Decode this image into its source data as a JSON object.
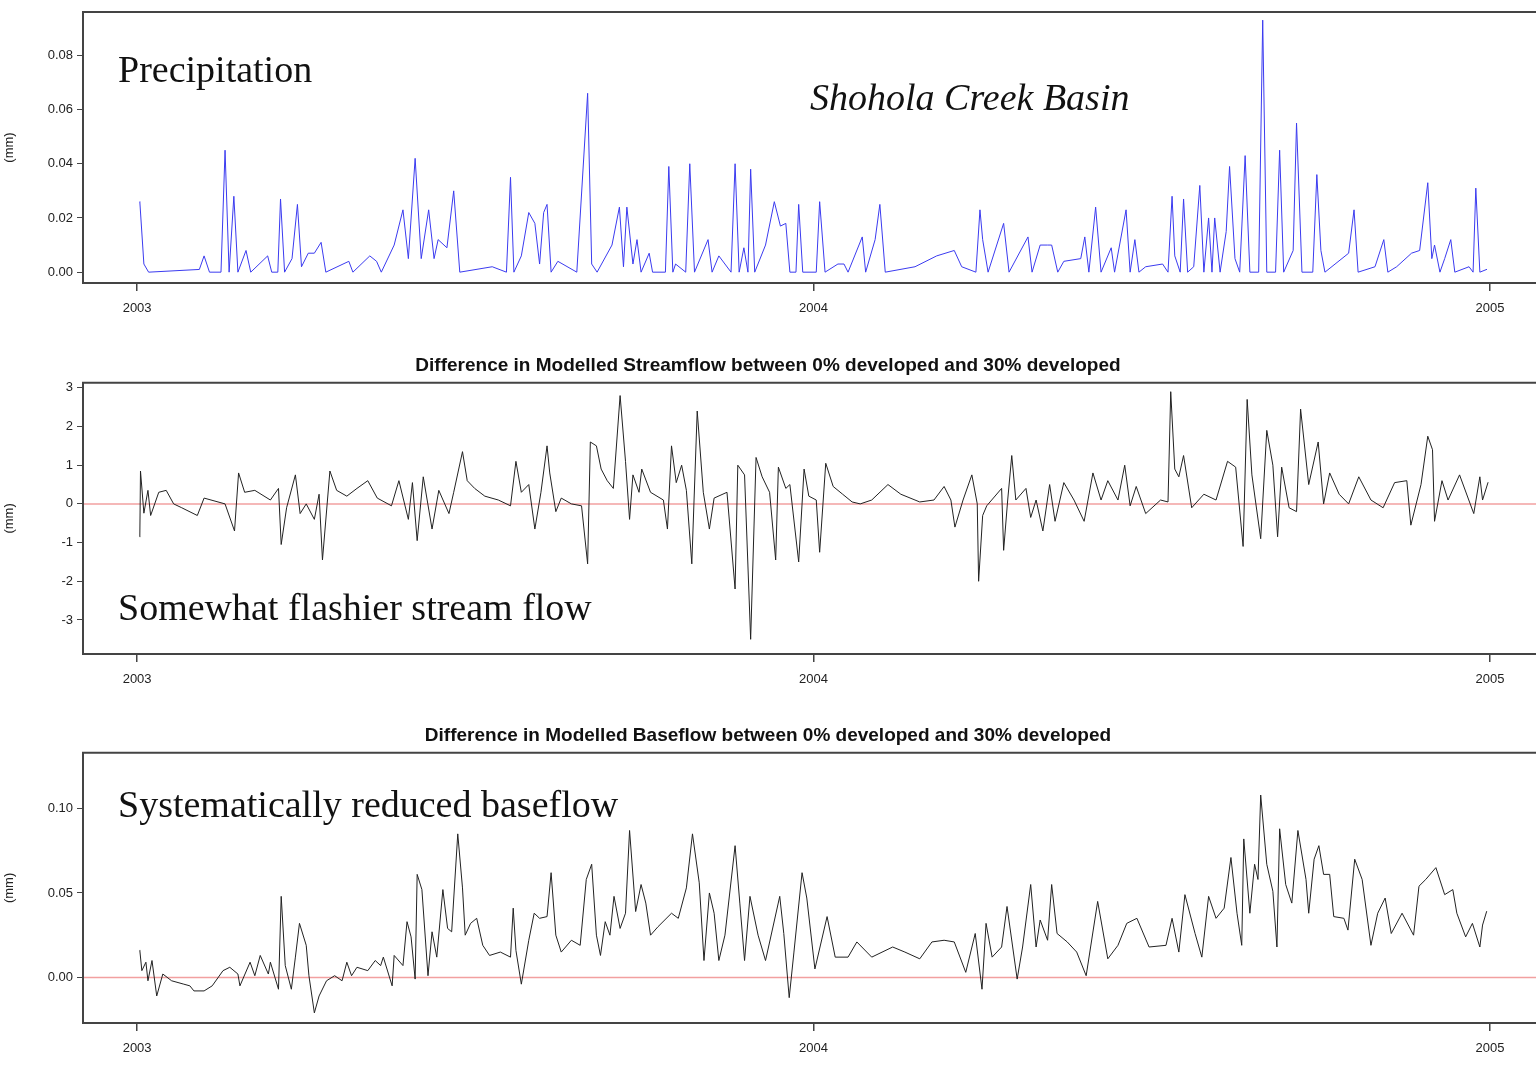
{
  "chart_data": [
    {
      "type": "line",
      "ylabel": "(mm)",
      "annotations": [
        "Precipitation",
        "Shohola Creek Basin"
      ],
      "xlim": [
        2002.92,
        2005.068
      ],
      "xticks": [
        2003,
        2004,
        2005
      ],
      "ylim": [
        -0.004,
        0.096
      ],
      "yticks": [
        {
          "value": 0,
          "label": "0.00"
        },
        {
          "value": 0.02,
          "label": "0.02"
        },
        {
          "value": 0.04,
          "label": "0.04"
        },
        {
          "value": 0.06,
          "label": "0.06"
        },
        {
          "value": 0.08,
          "label": "0.08"
        }
      ],
      "grid": false,
      "legend": false,
      "marker": "none",
      "line_style": "solid",
      "x": [
        2003.004,
        2003.01,
        2003.017,
        2003.092,
        2003.099,
        2003.107,
        2003.124,
        2003.13,
        2003.136,
        2003.143,
        2003.149,
        2003.161,
        2003.168,
        2003.193,
        2003.199,
        2003.208,
        2003.212,
        2003.218,
        2003.229,
        2003.237,
        2003.243,
        2003.253,
        2003.262,
        2003.272,
        2003.279,
        2003.313,
        2003.319,
        2003.344,
        2003.354,
        2003.361,
        2003.38,
        2003.393,
        2003.401,
        2003.411,
        2003.42,
        2003.431,
        2003.439,
        2003.445,
        2003.458,
        2003.468,
        2003.477,
        2003.525,
        2003.546,
        2003.552,
        2003.557,
        2003.568,
        2003.579,
        2003.588,
        2003.595,
        2003.601,
        2003.606,
        2003.612,
        2003.622,
        2003.65,
        2003.666,
        2003.672,
        2003.68,
        2003.702,
        2003.713,
        2003.719,
        2003.724,
        2003.733,
        2003.739,
        2003.745,
        2003.757,
        2003.762,
        2003.781,
        2003.786,
        2003.792,
        2003.796,
        2003.811,
        2003.817,
        2003.824,
        2003.844,
        2003.85,
        2003.86,
        2003.878,
        2003.884,
        2003.89,
        2003.897,
        2003.903,
        2003.907,
        2003.913,
        2003.929,
        2003.942,
        2003.951,
        2003.959,
        2003.965,
        2003.974,
        2003.978,
        2003.984,
        2004.004,
        2004.009,
        2004.017,
        2004.036,
        2004.045,
        2004.051,
        2004.072,
        2004.077,
        2004.091,
        2004.098,
        2004.106,
        2004.15,
        2004.182,
        2004.208,
        2004.219,
        2004.24,
        2004.246,
        2004.25,
        2004.258,
        2004.281,
        2004.289,
        2004.317,
        2004.323,
        2004.335,
        2004.346,
        2004.352,
        2004.361,
        2004.37,
        2004.395,
        2004.401,
        2004.407,
        2004.417,
        2004.425,
        2004.44,
        2004.445,
        2004.462,
        2004.468,
        2004.475,
        2004.481,
        2004.491,
        2004.516,
        2004.524,
        2004.53,
        2004.534,
        2004.542,
        2004.547,
        2004.553,
        2004.562,
        2004.571,
        2004.577,
        2004.584,
        2004.589,
        2004.593,
        2004.601,
        2004.61,
        2004.615,
        2004.623,
        2004.63,
        2004.638,
        2004.645,
        2004.658,
        2004.664,
        2004.67,
        2004.683,
        2004.689,
        2004.695,
        2004.709,
        2004.714,
        2004.722,
        2004.738,
        2004.744,
        2004.75,
        2004.756,
        2004.791,
        2004.799,
        2004.805,
        2004.83,
        2004.843,
        2004.849,
        2004.862,
        2004.884,
        2004.896,
        2004.908,
        2004.914,
        2004.918,
        2004.926,
        2004.933,
        2004.942,
        2004.948,
        2004.969,
        2004.975,
        2004.979,
        2004.985,
        2004.995
      ],
      "series": [
        {
          "color": "#3b3bf0",
          "values": [
            0.026,
            0.003,
            0,
            0.001,
            0.006,
            0,
            0,
            0.045,
            0,
            0.028,
            0,
            0.008,
            0,
            0.006,
            0,
            0,
            0.027,
            0,
            0.005,
            0.025,
            0.002,
            0.007,
            0.007,
            0.011,
            0,
            0.004,
            0,
            0.006,
            0.004,
            0,
            0.01,
            0.023,
            0.005,
            0.042,
            0.005,
            0.023,
            0.005,
            0.012,
            0.009,
            0.03,
            0,
            0.002,
            0,
            0.035,
            0,
            0.006,
            0.022,
            0.018,
            0.003,
            0.022,
            0.025,
            0,
            0.004,
            0,
            0.066,
            0.003,
            0,
            0.01,
            0.024,
            0.002,
            0.024,
            0.003,
            0.012,
            0,
            0.007,
            0,
            0,
            0.039,
            0,
            0.003,
            0,
            0.04,
            0,
            0.012,
            0,
            0.006,
            0,
            0.04,
            0,
            0.009,
            0,
            0.038,
            0,
            0.01,
            0.026,
            0.017,
            0.018,
            0,
            0,
            0.025,
            0,
            0,
            0.026,
            0,
            0.003,
            0.003,
            0,
            0.013,
            0,
            0.012,
            0.025,
            0,
            0.002,
            0.006,
            0.008,
            0.002,
            0,
            0.023,
            0.012,
            0,
            0.018,
            0,
            0.013,
            0,
            0.01,
            0.01,
            0.01,
            0,
            0.004,
            0.005,
            0.013,
            0,
            0.024,
            0,
            0.009,
            0,
            0.023,
            0,
            0.012,
            0,
            0.002,
            0.003,
            0,
            0.028,
            0.006,
            0,
            0.027,
            0,
            0.002,
            0.032,
            0,
            0.02,
            0,
            0.02,
            0,
            0.015,
            0.039,
            0.005,
            0,
            0.043,
            0,
            0,
            0.093,
            0,
            0,
            0.045,
            0,
            0.008,
            0.055,
            0,
            0,
            0.036,
            0.008,
            0,
            0.007,
            0.023,
            0,
            0.002,
            0.012,
            0,
            0.002,
            0.007,
            0.008,
            0.033,
            0.005,
            0.01,
            0,
            0.005,
            0.012,
            0,
            0.002,
            0,
            0.031,
            0,
            0.001
          ]
        }
      ]
    },
    {
      "type": "line",
      "title": "Difference in Modelled Streamflow between 0% developed and 30% developed",
      "ylabel": "(mm)",
      "annotations": [
        "Somewhat flashier stream flow"
      ],
      "xlim": [
        2002.92,
        2005.068
      ],
      "xticks": [
        2003,
        2004,
        2005
      ],
      "ylim": [
        -3.88,
        3.13
      ],
      "yticks": [
        -3,
        -2,
        -1,
        0,
        1,
        2,
        3
      ],
      "grid": false,
      "legend": false,
      "marker": "none",
      "line_style": "solid",
      "ref_lines": [
        {
          "axis": "y",
          "value": 0,
          "color": "#f2a0a0"
        }
      ],
      "x": [
        2003.004,
        2003.005,
        2003.01,
        2003.016,
        2003.02,
        2003.032,
        2003.043,
        2003.054,
        2003.066,
        2003.089,
        2003.099,
        2003.13,
        2003.144,
        2003.15,
        2003.159,
        2003.174,
        2003.197,
        2003.209,
        2003.213,
        2003.221,
        2003.234,
        2003.241,
        2003.25,
        2003.262,
        2003.269,
        2003.274,
        2003.285,
        2003.295,
        2003.31,
        2003.325,
        2003.341,
        2003.355,
        2003.376,
        2003.387,
        2003.401,
        2003.407,
        2003.414,
        2003.423,
        2003.436,
        2003.446,
        2003.461,
        2003.468,
        2003.481,
        2003.488,
        2003.499,
        2003.514,
        2003.534,
        2003.552,
        2003.56,
        2003.568,
        2003.579,
        2003.588,
        2003.597,
        2003.606,
        2003.61,
        2003.619,
        2003.627,
        2003.642,
        2003.657,
        2003.666,
        2003.67,
        2003.679,
        2003.686,
        2003.695,
        2003.704,
        2003.714,
        2003.722,
        2003.728,
        2003.733,
        2003.742,
        2003.746,
        2003.759,
        2003.778,
        2003.784,
        2003.79,
        2003.797,
        2003.805,
        2003.812,
        2003.82,
        2003.828,
        2003.837,
        2003.846,
        2003.853,
        2003.872,
        2003.884,
        2003.888,
        2003.898,
        2003.907,
        2003.915,
        2003.924,
        2003.935,
        2003.944,
        2003.948,
        2003.959,
        2003.965,
        2003.978,
        2003.986,
        2003.993,
        2004.004,
        2004.009,
        2004.018,
        2004.029,
        2004.043,
        2004.057,
        2004.069,
        2004.086,
        2004.11,
        2004.129,
        2004.157,
        2004.178,
        2004.193,
        2004.203,
        2004.209,
        2004.221,
        2004.234,
        2004.242,
        2004.244,
        2004.25,
        2004.256,
        2004.278,
        2004.281,
        2004.287,
        2004.293,
        2004.299,
        2004.314,
        2004.321,
        2004.329,
        2004.339,
        2004.349,
        2004.357,
        2004.37,
        2004.385,
        2004.4,
        2004.413,
        2004.425,
        2004.435,
        2004.45,
        2004.46,
        2004.468,
        2004.477,
        2004.491,
        2004.513,
        2004.524,
        2004.528,
        2004.534,
        2004.54,
        2004.547,
        2004.559,
        2004.577,
        2004.595,
        2004.612,
        2004.624,
        2004.635,
        2004.641,
        2004.648,
        2004.661,
        2004.67,
        2004.679,
        2004.686,
        2004.692,
        2004.703,
        2004.714,
        2004.72,
        2004.732,
        2004.746,
        2004.754,
        2004.763,
        2004.777,
        2004.791,
        2004.806,
        2004.824,
        2004.842,
        2004.859,
        2004.877,
        2004.883,
        2004.898,
        2004.908,
        2004.915,
        2004.918,
        2004.929,
        2004.938,
        2004.955,
        2004.976,
        2004.985,
        2004.989,
        2004.997
      ],
      "series": [
        {
          "color": "#222222",
          "values": [
            -0.85,
            0.85,
            -0.24,
            0.35,
            -0.3,
            0.3,
            0.35,
            0,
            -0.1,
            -0.3,
            0.15,
            0,
            -0.7,
            0.8,
            0.3,
            0.35,
            0.1,
            0.4,
            -1.05,
            -0.1,
            0.75,
            -0.25,
            0,
            -0.4,
            0.25,
            -1.45,
            0.85,
            0.35,
            0.2,
            0.4,
            0.6,
            0.15,
            -0.05,
            0.6,
            -0.4,
            0.55,
            -0.95,
            0.7,
            -0.65,
            0.35,
            -0.25,
            0.3,
            1.35,
            0.6,
            0.4,
            0.2,
            0.1,
            -0.05,
            1.1,
            0.3,
            0.5,
            -0.65,
            0.3,
            1.5,
            0.8,
            -0.2,
            0.15,
            0,
            -0.05,
            -1.55,
            1.6,
            1.5,
            0.9,
            0.6,
            0.4,
            2.8,
            1.1,
            -0.4,
            0.75,
            0.3,
            0.9,
            0.3,
            0.1,
            -0.65,
            1.5,
            0.55,
            1.0,
            0.35,
            -1.55,
            2.4,
            0.3,
            -0.65,
            0.15,
            0.3,
            -2.2,
            1.0,
            0.75,
            -3.5,
            1.2,
            0.7,
            0.3,
            -1.45,
            0.95,
            0.4,
            0.5,
            -1.5,
            0.9,
            0.2,
            0.1,
            -1.25,
            1.05,
            0.45,
            0.25,
            0.05,
            0,
            0.1,
            0.5,
            0.25,
            0.05,
            0.1,
            0.45,
            0.1,
            -0.6,
            0.1,
            0.75,
            0,
            -2.0,
            -0.3,
            -0.05,
            0.4,
            -1.2,
            0.1,
            1.25,
            0.1,
            0.4,
            -0.35,
            0.1,
            -0.7,
            0.5,
            -0.45,
            0.55,
            0.1,
            -0.45,
            0.8,
            0.1,
            0.6,
            0.1,
            1.0,
            -0.05,
            0.45,
            -0.25,
            0.1,
            0.05,
            2.9,
            0.9,
            0.7,
            1.25,
            -0.1,
            0.25,
            0.1,
            1.1,
            0.95,
            -1.1,
            2.7,
            0.75,
            -0.9,
            1.9,
            1.0,
            -0.85,
            0.95,
            -0.1,
            -0.2,
            2.45,
            0.5,
            1.6,
            0,
            0.8,
            0.25,
            0,
            0.7,
            0.1,
            -0.1,
            0.55,
            0.6,
            -0.55,
            0.5,
            1.75,
            1.4,
            -0.45,
            0.6,
            0.1,
            0.75,
            -0.25,
            0.7,
            0.1,
            0.55
          ]
        }
      ]
    },
    {
      "type": "line",
      "title": "Difference in Modelled Baseflow between 0% developed and 30% developed",
      "ylabel": "(mm)",
      "annotations": [
        "Systematically reduced baseflow"
      ],
      "xlim": [
        2002.92,
        2005.068
      ],
      "xticks": [
        2003,
        2004,
        2005
      ],
      "ylim": [
        -0.027,
        0.133
      ],
      "yticks": [
        {
          "value": 0,
          "label": "0.00"
        },
        {
          "value": 0.05,
          "label": "0.05"
        },
        {
          "value": 0.1,
          "label": "0.10"
        }
      ],
      "grid": false,
      "legend": false,
      "marker": "none",
      "line_style": "solid",
      "ref_lines": [
        {
          "axis": "y",
          "value": 0,
          "color": "#f2a0a0"
        }
      ],
      "x": [
        2003.004,
        2003.007,
        2003.013,
        2003.016,
        2003.022,
        2003.029,
        2003.038,
        2003.051,
        2003.069,
        2003.078,
        2003.084,
        2003.099,
        2003.111,
        2003.127,
        2003.137,
        2003.149,
        2003.152,
        2003.167,
        2003.174,
        2003.182,
        2003.194,
        2003.197,
        2003.209,
        2003.213,
        2003.219,
        2003.228,
        2003.234,
        2003.24,
        2003.25,
        2003.254,
        2003.262,
        2003.269,
        2003.28,
        2003.292,
        2003.303,
        2003.31,
        2003.317,
        2003.325,
        2003.341,
        2003.352,
        2003.36,
        2003.364,
        2003.377,
        2003.38,
        2003.393,
        2003.399,
        2003.405,
        2003.411,
        2003.414,
        2003.421,
        2003.43,
        2003.436,
        2003.443,
        2003.452,
        2003.459,
        2003.465,
        2003.474,
        2003.481,
        2003.485,
        2003.493,
        2003.502,
        2003.511,
        2003.521,
        2003.537,
        2003.552,
        2003.556,
        2003.56,
        2003.568,
        2003.579,
        2003.587,
        2003.595,
        2003.606,
        2003.612,
        2003.619,
        2003.627,
        2003.642,
        2003.655,
        2003.664,
        2003.672,
        2003.679,
        2003.685,
        2003.692,
        2003.699,
        2003.705,
        2003.714,
        2003.722,
        2003.728,
        2003.737,
        2003.745,
        2003.752,
        2003.759,
        2003.77,
        2003.79,
        2003.8,
        2003.812,
        2003.821,
        2003.831,
        2003.838,
        2003.846,
        2003.853,
        2003.86,
        2003.869,
        2003.884,
        2003.891,
        2003.898,
        2003.906,
        2003.918,
        2003.929,
        2003.95,
        2003.956,
        2003.964,
        2003.971,
        2003.983,
        2003.99,
        2004.002,
        2004.02,
        2004.032,
        2004.051,
        2004.064,
        2004.086,
        2004.117,
        2004.135,
        2004.157,
        2004.175,
        2004.193,
        2004.208,
        2004.225,
        2004.239,
        2004.249,
        2004.255,
        2004.264,
        2004.278,
        2004.286,
        2004.301,
        2004.309,
        2004.321,
        2004.329,
        2004.335,
        2004.346,
        2004.352,
        2004.36,
        2004.375,
        2004.389,
        2004.403,
        2004.42,
        2004.435,
        2004.45,
        2004.463,
        2004.478,
        2004.496,
        2004.521,
        2004.53,
        2004.54,
        2004.549,
        2004.564,
        2004.574,
        2004.584,
        2004.595,
        2004.607,
        2004.617,
        2004.626,
        2004.633,
        2004.636,
        2004.645,
        2004.652,
        2004.657,
        2004.661,
        2004.67,
        2004.679,
        2004.685,
        2004.689,
        2004.698,
        2004.707,
        2004.716,
        2004.728,
        2004.732,
        2004.74,
        2004.747,
        2004.754,
        2004.763,
        2004.769,
        2004.784,
        2004.79,
        2004.8,
        2004.811,
        2004.824,
        2004.834,
        2004.845,
        2004.854,
        2004.87,
        2004.887,
        2004.895,
        2004.905,
        2004.92,
        2004.933,
        2004.945,
        2004.951,
        2004.964,
        2004.974,
        2004.985,
        2004.989,
        2004.995
      ],
      "series": [
        {
          "color": "#222222",
          "values": [
            0.016,
            0.004,
            0.009,
            -0.002,
            0.01,
            -0.011,
            0.002,
            -0.002,
            -0.004,
            -0.005,
            -0.008,
            -0.008,
            -0.005,
            0.004,
            0.006,
            0.002,
            -0.005,
            0.009,
            0.001,
            0.013,
            0.002,
            0.009,
            -0.007,
            0.048,
            0.007,
            -0.007,
            0.012,
            0.032,
            0.019,
            0.001,
            -0.021,
            -0.011,
            -0.002,
            0.001,
            -0.002,
            0.009,
            0.001,
            0.006,
            0.004,
            0.01,
            0.007,
            0.012,
            -0.005,
            0.013,
            0.007,
            0.033,
            0.024,
            -0.001,
            0.061,
            0.052,
            0.001,
            0.027,
            0.012,
            0.052,
            0.029,
            0.027,
            0.085,
            0.053,
            0.025,
            0.032,
            0.035,
            0.019,
            0.013,
            0.015,
            0.012,
            0.041,
            0.016,
            -0.004,
            0.022,
            0.038,
            0.035,
            0.036,
            0.062,
            0.025,
            0.015,
            0.022,
            0.019,
            0.058,
            0.067,
            0.025,
            0.013,
            0.033,
            0.025,
            0.048,
            0.029,
            0.038,
            0.087,
            0.039,
            0.055,
            0.044,
            0.025,
            0.03,
            0.038,
            0.035,
            0.053,
            0.085,
            0.056,
            0.01,
            0.05,
            0.038,
            0.01,
            0.025,
            0.078,
            0.044,
            0.01,
            0.048,
            0.025,
            0.01,
            0.048,
            0.026,
            -0.012,
            0.015,
            0.062,
            0.047,
            0.005,
            0.036,
            0.012,
            0.012,
            0.021,
            0.012,
            0.018,
            0.015,
            0.011,
            0.021,
            0.022,
            0.021,
            0.003,
            0.026,
            -0.007,
            0.032,
            0.012,
            0.018,
            0.042,
            -0.001,
            0.018,
            0.055,
            0.018,
            0.034,
            0.022,
            0.055,
            0.026,
            0.021,
            0.015,
            0.001,
            0.045,
            0.011,
            0.019,
            0.032,
            0.035,
            0.018,
            0.019,
            0.035,
            0.015,
            0.049,
            0.026,
            0.012,
            0.048,
            0.035,
            0.041,
            0.071,
            0.038,
            0.019,
            0.082,
            0.038,
            0.067,
            0.058,
            0.108,
            0.067,
            0.051,
            0.018,
            0.088,
            0.055,
            0.044,
            0.087,
            0.058,
            0.038,
            0.07,
            0.078,
            0.061,
            0.061,
            0.036,
            0.035,
            0.028,
            0.07,
            0.058,
            0.019,
            0.038,
            0.047,
            0.026,
            0.038,
            0.025,
            0.054,
            0.058,
            0.065,
            0.049,
            0.052,
            0.038,
            0.024,
            0.032,
            0.018,
            0.031,
            0.039
          ]
        }
      ]
    }
  ]
}
